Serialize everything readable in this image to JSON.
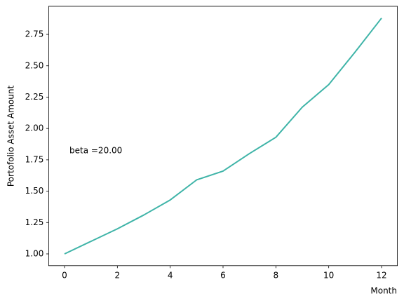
{
  "chart_data": {
    "type": "line",
    "x": [
      0,
      1,
      2,
      3,
      4,
      5,
      6,
      7,
      8,
      9,
      10,
      11,
      12
    ],
    "values": [
      1.0,
      1.1,
      1.2,
      1.31,
      1.43,
      1.59,
      1.66,
      1.8,
      1.93,
      2.17,
      2.35,
      2.61,
      2.88
    ],
    "color": "#3fb4a8",
    "xlabel": "Month",
    "ylabel": "Portofolio Asset Amount",
    "annotation": "beta =20.00",
    "xlim": [
      -0.6,
      12.6
    ],
    "xticks": [
      0,
      2,
      4,
      6,
      8,
      10,
      12
    ],
    "ylim": [
      0.906,
      2.974
    ],
    "yticks": [
      {
        "value": 1.0,
        "label": "1.00"
      },
      {
        "value": 1.25,
        "label": "1.25"
      },
      {
        "value": 1.5,
        "label": "1.50"
      },
      {
        "value": 1.75,
        "label": "1.75"
      },
      {
        "value": 2.0,
        "label": "2.00"
      },
      {
        "value": 2.25,
        "label": "2.25"
      },
      {
        "value": 2.5,
        "label": "2.50"
      },
      {
        "value": 2.75,
        "label": "2.75"
      }
    ],
    "grid": false
  }
}
